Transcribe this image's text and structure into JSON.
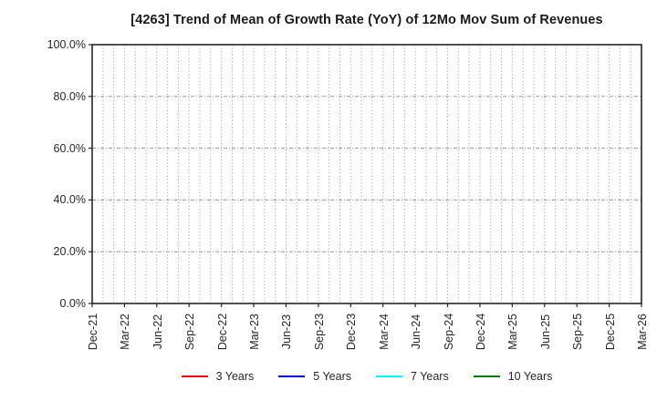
{
  "chart_data": {
    "type": "line",
    "title": "[4263]  Trend of Mean of Growth Rate (YoY) of 12Mo Mov Sum of Revenues",
    "xlabel": "",
    "ylabel": "",
    "x_tick_labels": [
      "Dec-21",
      "Mar-22",
      "Jun-22",
      "Sep-22",
      "Dec-22",
      "Mar-23",
      "Jun-23",
      "Sep-23",
      "Dec-23",
      "Mar-24",
      "Jun-24",
      "Sep-24",
      "Dec-24",
      "Mar-25",
      "Jun-25",
      "Sep-25",
      "Dec-25",
      "Mar-26"
    ],
    "months_per_tick": 3,
    "y_tick_labels": [
      "0.0%",
      "20.0%",
      "40.0%",
      "60.0%",
      "80.0%",
      "100.0%"
    ],
    "ylim": [
      0,
      100
    ],
    "grid": "on",
    "legend_position": "bottom-outside",
    "series": [
      {
        "name": "3 Years",
        "color": "#ff0000",
        "values": []
      },
      {
        "name": "5 Years",
        "color": "#0000ff",
        "values": []
      },
      {
        "name": "7 Years",
        "color": "#00ffff",
        "values": []
      },
      {
        "name": "10 Years",
        "color": "#008000",
        "values": []
      }
    ]
  }
}
